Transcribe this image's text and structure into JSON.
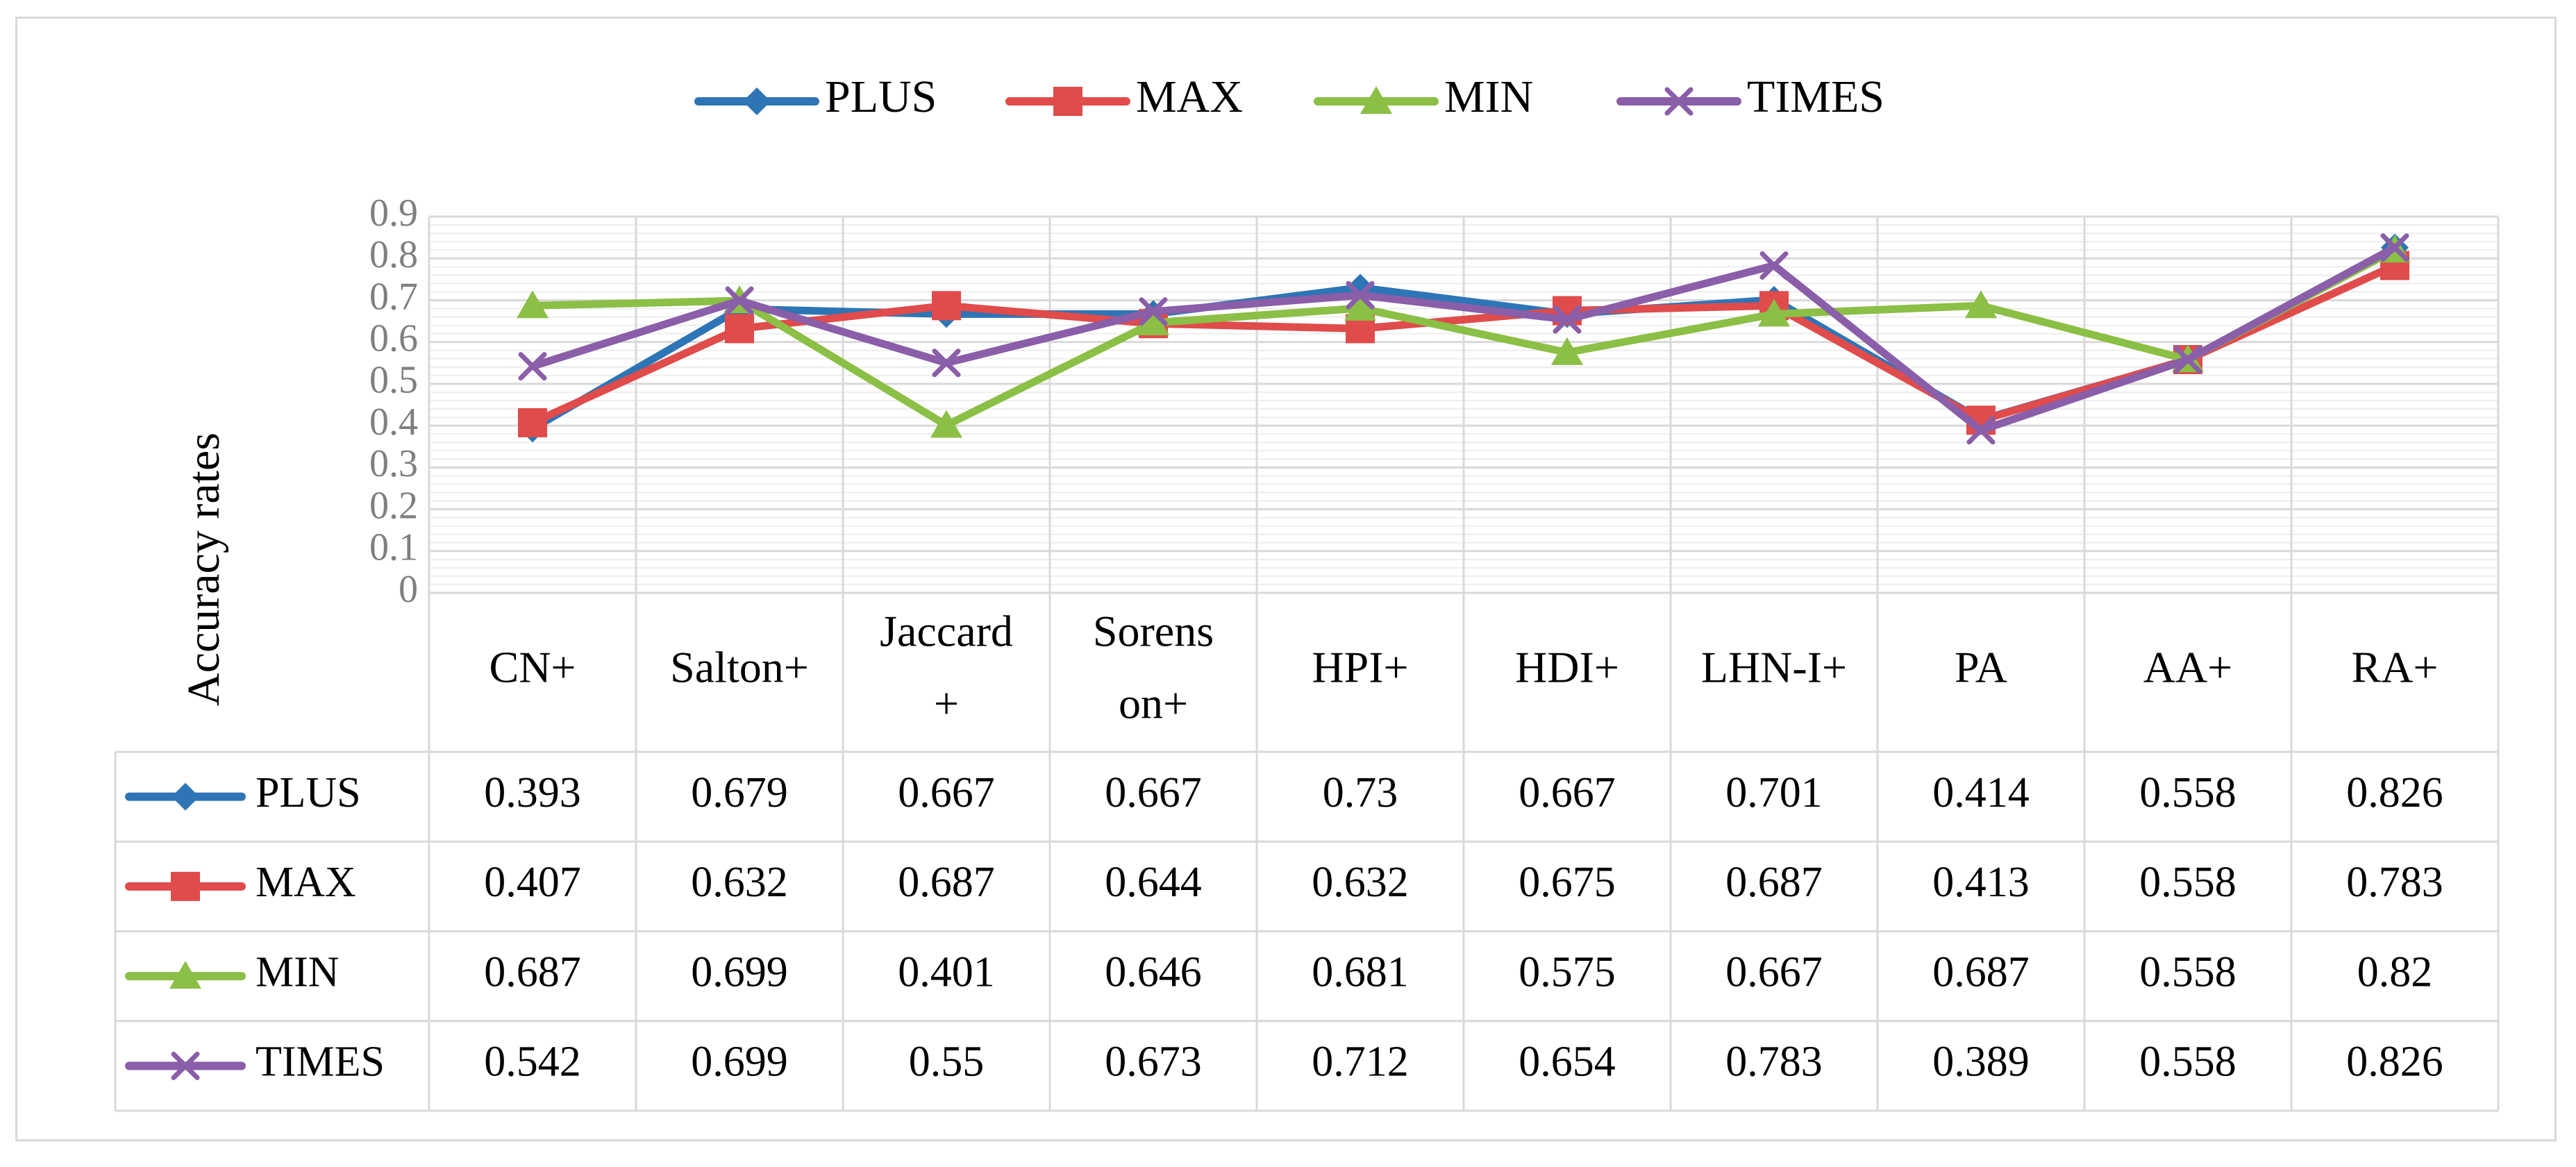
{
  "chart_data": {
    "type": "line",
    "title": "",
    "xlabel": "",
    "ylabel": "Accuracy rates",
    "ylim": [
      0,
      0.9
    ],
    "yticks": [
      "0",
      "0.1",
      "0.2",
      "0.3",
      "0.4",
      "0.5",
      "0.6",
      "0.7",
      "0.8",
      "0.9"
    ],
    "grid": true,
    "legend_position": "top",
    "categories": [
      [
        "CN+"
      ],
      [
        "Salton+"
      ],
      [
        "Jaccard",
        "+"
      ],
      [
        "Sorens",
        "on+"
      ],
      [
        "HPI+"
      ],
      [
        "HDI+"
      ],
      [
        "LHN-I+"
      ],
      [
        "PA"
      ],
      [
        "AA+"
      ],
      [
        "RA+"
      ]
    ],
    "series": [
      {
        "name": "PLUS",
        "color": "#2e75b6",
        "marker": "diamond",
        "values": [
          0.393,
          0.679,
          0.667,
          0.667,
          0.73,
          0.667,
          0.701,
          0.414,
          0.558,
          0.826
        ]
      },
      {
        "name": "MAX",
        "color": "#e04b4b",
        "marker": "square",
        "values": [
          0.407,
          0.632,
          0.687,
          0.644,
          0.632,
          0.675,
          0.687,
          0.413,
          0.558,
          0.783
        ]
      },
      {
        "name": "MIN",
        "color": "#8bbf45",
        "marker": "triangle",
        "values": [
          0.687,
          0.699,
          0.401,
          0.646,
          0.681,
          0.575,
          0.667,
          0.687,
          0.558,
          0.82
        ]
      },
      {
        "name": "TIMES",
        "color": "#8a5ea8",
        "marker": "x",
        "values": [
          0.542,
          0.699,
          0.55,
          0.673,
          0.712,
          0.654,
          0.783,
          0.389,
          0.558,
          0.826
        ]
      }
    ],
    "data_table": {
      "rows": [
        [
          "0.393",
          "0.679",
          "0.667",
          "0.667",
          "0.73",
          "0.667",
          "0.701",
          "0.414",
          "0.558",
          "0.826"
        ],
        [
          "0.407",
          "0.632",
          "0.687",
          "0.644",
          "0.632",
          "0.675",
          "0.687",
          "0.413",
          "0.558",
          "0.783"
        ],
        [
          "0.687",
          "0.699",
          "0.401",
          "0.646",
          "0.681",
          "0.575",
          "0.667",
          "0.687",
          "0.558",
          "0.82"
        ],
        [
          "0.542",
          "0.699",
          "0.55",
          "0.673",
          "0.712",
          "0.654",
          "0.783",
          "0.389",
          "0.558",
          "0.826"
        ]
      ]
    }
  }
}
